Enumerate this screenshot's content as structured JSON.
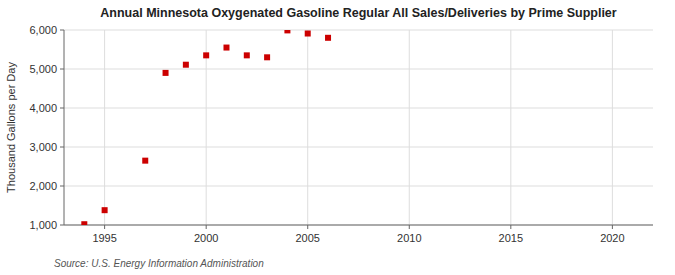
{
  "chart_data": {
    "type": "scatter",
    "title": "Annual Minnesota Oxygenated Gasoline Regular All Sales/Deliveries by Prime Supplier",
    "y_label": "Thousand Gallons per Day",
    "annotations": [
      "Source: U.S. Energy Information Administration"
    ],
    "x": [
      1994,
      1995,
      1997,
      1998,
      1999,
      2000,
      2001,
      2002,
      2003,
      2004,
      2005,
      2006
    ],
    "values": [
      1020,
      1380,
      2650,
      4900,
      5110,
      5350,
      5550,
      5350,
      5300,
      5990,
      5910,
      5800
    ],
    "color": "#cc0000",
    "marker": "square",
    "xlim": [
      1993,
      2022
    ],
    "ylim": [
      1000,
      6000
    ],
    "xticks": [
      1995,
      2000,
      2005,
      2010,
      2015,
      2020
    ],
    "yticks": [
      {
        "value": 1000,
        "label": "1,000"
      },
      {
        "value": 2000,
        "label": "2,000"
      },
      {
        "value": 3000,
        "label": "3,000"
      },
      {
        "value": 4000,
        "label": "4,000"
      },
      {
        "value": 5000,
        "label": "5,000"
      },
      {
        "value": 6000,
        "label": "6,000"
      }
    ],
    "grid": true
  }
}
